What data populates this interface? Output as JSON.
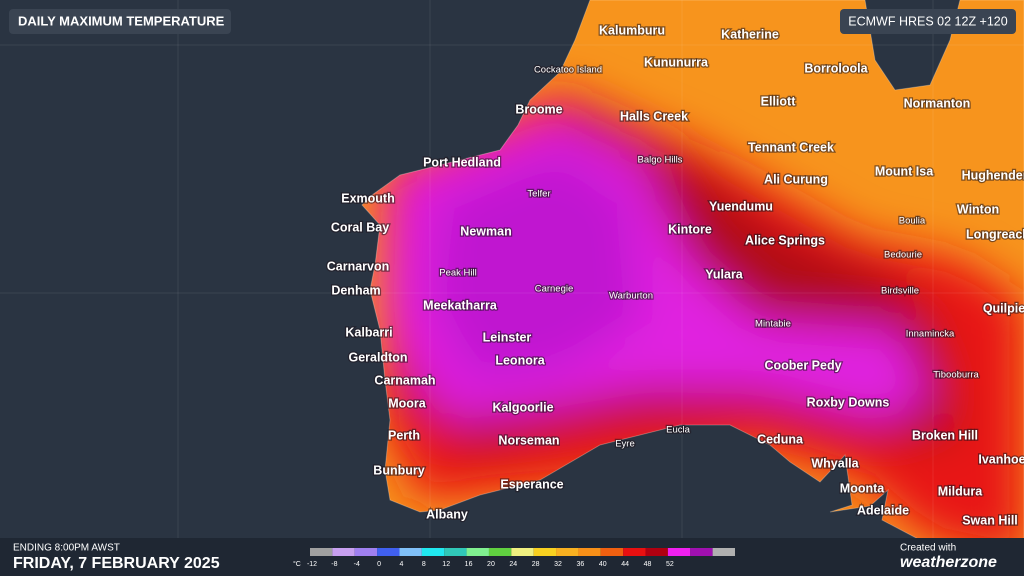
{
  "header": {
    "title": "DAILY MAXIMUM TEMPERATURE",
    "model": "ECMWF HRES 02 12Z +120"
  },
  "places": [
    "Kalumburu",
    "Katherine",
    "Kununurra",
    "Cockatoo Island",
    "Borroloola",
    "Broome",
    "Halls Creek",
    "Elliott",
    "Normanton",
    "Tennant Creek",
    "Balgo Hills",
    "Port Hedland",
    "Ali Curung",
    "Mount Isa",
    "Hughenden",
    "Telfer",
    "Exmouth",
    "Yuendumu",
    "Winton",
    "Coral Bay",
    "Newman",
    "Kintore",
    "Alice Springs",
    "Boulia",
    "Longreach",
    "Bedourie",
    "Carnarvon",
    "Peak Hill",
    "Yulara",
    "Denham",
    "Carnegie",
    "Warburton",
    "Birdsville",
    "Quilpie",
    "Meekatharra",
    "Mintabie",
    "Innamincka",
    "Kalbarri",
    "Leinster",
    "Geraldton",
    "Leonora",
    "Coober Pedy",
    "Tibooburra",
    "Carnamah",
    "Moora",
    "Roxby Downs",
    "Kalgoorlie",
    "Perth",
    "Norseman",
    "Eyre",
    "Eucla",
    "Ceduna",
    "Broken Hill",
    "Ivanhoe",
    "Whyalla",
    "Bunbury",
    "Esperance",
    "Moonta",
    "Mildura",
    "Albany",
    "Adelaide",
    "Swan Hill"
  ],
  "legend": {
    "unit": "°C",
    "ticks": [
      -12,
      -8,
      -4,
      0,
      4,
      8,
      12,
      16,
      20,
      24,
      28,
      32,
      36,
      40,
      44,
      48,
      52
    ],
    "colors": [
      "#a0a0a0",
      "#c8a0f0",
      "#a080f0",
      "#4060f0",
      "#80c0f8",
      "#20e8f0",
      "#30c8b8",
      "#80f090",
      "#60d040",
      "#f0f080",
      "#f8d020",
      "#f8b020",
      "#f89018",
      "#f06010",
      "#e81010",
      "#b00010",
      "#f020f0",
      "#a010b0",
      "#b0b0b0"
    ]
  },
  "footer": {
    "ending": "ENDING 8:00PM AWST",
    "date": "FRIDAY, 7 FEBRUARY 2025",
    "created_with": "Created with",
    "brand": "weatherzone"
  }
}
